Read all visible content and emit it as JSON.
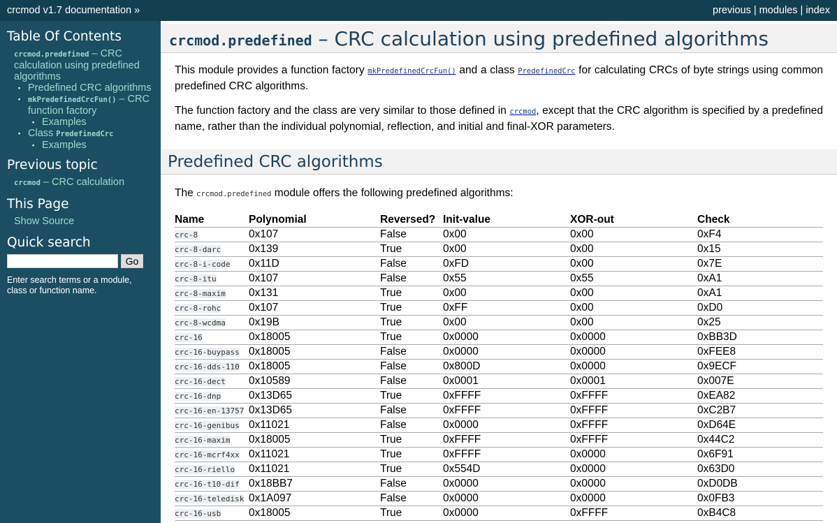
{
  "topbar": {
    "title": "crcmod v1.7 documentation »",
    "links": [
      "previous",
      "modules",
      "index"
    ],
    "sep": "|"
  },
  "sidebar": {
    "toc_title": "Table Of Contents",
    "toc_root_code": "crcmod.predefined",
    "toc_root_text": " – CRC calculation using predefined algorithms",
    "toc_items": {
      "predefined": "Predefined CRC algorithms",
      "mkfun_code": "mkPredefinedCrcFun()",
      "mkfun_text": " – CRC function factory",
      "examples1": "Examples",
      "class_text": "Class ",
      "class_code": "PredefinedCrc",
      "examples2": "Examples"
    },
    "prev_title": "Previous topic",
    "prev_code": "crcmod",
    "prev_text": " – CRC calculation",
    "this_page_title": "This Page",
    "show_source": "Show Source",
    "search_title": "Quick search",
    "search_value": "",
    "go": "Go",
    "hint": "Enter search terms or a module, class or function name."
  },
  "main": {
    "title_code": "crcmod.predefined",
    "title_text": " – CRC calculation using predefined algorithms",
    "p1": {
      "a": "This module provides a function factory ",
      "c1": "mkPredefinedCrcFun()",
      "b": " and a class ",
      "c2": "PredefinedCrc",
      "d": " for calculating CRCs of byte strings using common predefined CRC algorithms."
    },
    "p2": {
      "a": "The function factory and the class are very similar to those defined in ",
      "c1": "crcmod",
      "b": ", except that the CRC algorithm is specified by a predefined name, rather than the individual polynomial, reflection, and initial and final-XOR parameters."
    },
    "section_title": "Predefined CRC algorithms",
    "p3": {
      "a": "The ",
      "c1": "crcmod.predefined",
      "b": " module offers the following predefined algorithms:"
    },
    "table": {
      "headers": [
        "Name",
        "Polynomial",
        "Reversed?",
        "Init-value",
        "XOR-out",
        "Check"
      ],
      "rows": [
        [
          "crc-8",
          "0x107",
          "False",
          "0x00",
          "0x00",
          "0xF4"
        ],
        [
          "crc-8-darc",
          "0x139",
          "True",
          "0x00",
          "0x00",
          "0x15"
        ],
        [
          "crc-8-i-code",
          "0x11D",
          "False",
          "0xFD",
          "0x00",
          "0x7E"
        ],
        [
          "crc-8-itu",
          "0x107",
          "False",
          "0x55",
          "0x55",
          "0xA1"
        ],
        [
          "crc-8-maxim",
          "0x131",
          "True",
          "0x00",
          "0x00",
          "0xA1"
        ],
        [
          "crc-8-rohc",
          "0x107",
          "True",
          "0xFF",
          "0x00",
          "0xD0"
        ],
        [
          "crc-8-wcdma",
          "0x19B",
          "True",
          "0x00",
          "0x00",
          "0x25"
        ],
        [
          "crc-16",
          "0x18005",
          "True",
          "0x0000",
          "0x0000",
          "0xBB3D"
        ],
        [
          "crc-16-buypass",
          "0x18005",
          "False",
          "0x0000",
          "0x0000",
          "0xFEE8"
        ],
        [
          "crc-16-dds-110",
          "0x18005",
          "False",
          "0x800D",
          "0x0000",
          "0x9ECF"
        ],
        [
          "crc-16-dect",
          "0x10589",
          "False",
          "0x0001",
          "0x0001",
          "0x007E"
        ],
        [
          "crc-16-dnp",
          "0x13D65",
          "True",
          "0xFFFF",
          "0xFFFF",
          "0xEA82"
        ],
        [
          "crc-16-en-13757",
          "0x13D65",
          "False",
          "0xFFFF",
          "0xFFFF",
          "0xC2B7"
        ],
        [
          "crc-16-genibus",
          "0x11021",
          "False",
          "0x0000",
          "0xFFFF",
          "0xD64E"
        ],
        [
          "crc-16-maxim",
          "0x18005",
          "True",
          "0xFFFF",
          "0xFFFF",
          "0x44C2"
        ],
        [
          "crc-16-mcrf4xx",
          "0x11021",
          "True",
          "0xFFFF",
          "0x0000",
          "0x6F91"
        ],
        [
          "crc-16-riello",
          "0x11021",
          "True",
          "0x554D",
          "0x0000",
          "0x63D0"
        ],
        [
          "crc-16-t10-dif",
          "0x18BB7",
          "False",
          "0x0000",
          "0x0000",
          "0xD0DB"
        ],
        [
          "crc-16-teledisk",
          "0x1A097",
          "False",
          "0x0000",
          "0x0000",
          "0x0FB3"
        ],
        [
          "crc-16-usb",
          "0x18005",
          "True",
          "0x0000",
          "0xFFFF",
          "0xB4C8"
        ]
      ]
    }
  }
}
